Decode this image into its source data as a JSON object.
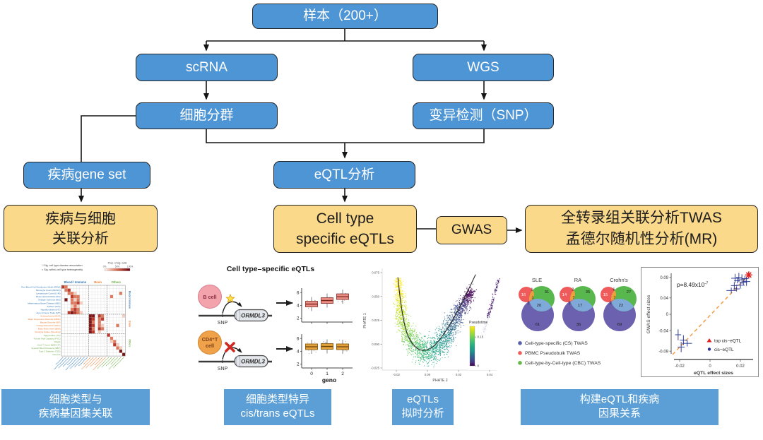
{
  "flowchart": {
    "nodes": {
      "sample": "样本（200+）",
      "scrna": "scRNA",
      "wgs": "WGS",
      "clustering": "细胞分群",
      "variant": "变异检测（SNP）",
      "gene_set": "疾病gene set",
      "eqtl": "eQTL分析",
      "disease_cell": "疾病与细胞\n关联分析",
      "cell_type_eqtls": "Cell type\nspecific eQTLs",
      "gwas": "GWAS",
      "twas_mr": "全转录组关联分析TWAS\n孟德尔随机性分析(MR)"
    },
    "colors": {
      "process_blue": "#4E95D5",
      "result_orange": "#FBD98B",
      "caption_blue": "#5B9FD6",
      "border": "#242424",
      "connector": "#151515"
    }
  },
  "captions": [
    {
      "line1": "细胞类型与",
      "line2": "疾病基因集关联"
    },
    {
      "line1": "细胞类型特异",
      "line2": "cis/trans eQTLs"
    },
    {
      "line1": "eQTLs",
      "line2": "拟时分析"
    },
    {
      "line1": "构建eQTL和疾病",
      "line2": "因果关系"
    }
  ],
  "chart_data": [
    {
      "type": "heatmap",
      "legend": [
        "□ Sig. cell type-disease association",
        "× Sig. within-cell type heterogeneity"
      ],
      "colorbar": {
        "label": "Prop. of sig. cells",
        "ticks": [
          "0%",
          "50%",
          "100%"
        ]
      },
      "col_groups": [
        {
          "label": "Blood / Immune",
          "color": "#2E75B6",
          "cols": 9
        },
        {
          "label": "Brain",
          "color": "#ED7D31",
          "cols": 6
        },
        {
          "label": "Others",
          "color": "#70AD47",
          "cols": 6
        }
      ],
      "rows": [
        {
          "label": "Red Blood Cell Distribution Width (RDW)",
          "g": 0
        },
        {
          "label": "Monocyte Count (MONO)",
          "g": 0
        },
        {
          "label": "Lymphocyte Count (LYM)",
          "g": 0
        },
        {
          "label": "Rheumatoid Arthritis (RA)",
          "g": 0
        },
        {
          "label": "Multiple Sclerosis (MS)",
          "g": 0
        },
        {
          "label": "Inflammatory Bowel Disease (IBD)",
          "g": 0
        },
        {
          "label": "Asthma (asth)",
          "g": 0
        },
        {
          "label": "Hypothyroidism (HT)",
          "g": 0
        },
        {
          "label": "Auto Immune Traits (AIT)",
          "g": 0
        },
        {
          "label": "Schizophrenia (SCZ)",
          "g": 1
        },
        {
          "label": "Major Depressive Disorder (MDD)",
          "g": 1
        },
        {
          "label": "Bipolar Disorder (BP)",
          "g": 1
        },
        {
          "label": "College Education (EDU)",
          "g": 1
        },
        {
          "label": "Body Mass Index (BMI)",
          "g": 1
        },
        {
          "label": "Smoking Status (Smoking)",
          "g": 1
        },
        {
          "label": "Triglycerides (TG)",
          "g": 2
        },
        {
          "label": "Forced Vital Capacity (FVC)",
          "g": 2
        },
        {
          "label": "Height",
          "g": 2
        },
        {
          "label": "Heel T Score (BMD-HT)",
          "g": 2
        },
        {
          "label": "Systolic Blood Pressure (SBP)",
          "g": 2
        },
        {
          "label": "Type 2 Diabetes (T2D)",
          "g": 2
        },
        {
          "label": "Glucose",
          "g": 2
        }
      ],
      "palette": [
        "#f6cfc0",
        "#df7a5e",
        "#bb3a2c",
        "#7e1416"
      ],
      "cells": [
        [
          0,
          0,
          3
        ],
        [
          0,
          1,
          2
        ],
        [
          1,
          1,
          2
        ],
        [
          1,
          2,
          3
        ],
        [
          2,
          2,
          2
        ],
        [
          2,
          3,
          2
        ],
        [
          2,
          4,
          1
        ],
        [
          2,
          19,
          2
        ],
        [
          3,
          3,
          3
        ],
        [
          3,
          4,
          2
        ],
        [
          3,
          5,
          2
        ],
        [
          3,
          16,
          2
        ],
        [
          4,
          1,
          4
        ],
        [
          4,
          3,
          2
        ],
        [
          4,
          4,
          1
        ],
        [
          4,
          5,
          2
        ],
        [
          5,
          3,
          2
        ],
        [
          5,
          4,
          2
        ],
        [
          5,
          5,
          3
        ],
        [
          5,
          6,
          1
        ],
        [
          6,
          3,
          1
        ],
        [
          6,
          4,
          2
        ],
        [
          6,
          5,
          1
        ],
        [
          7,
          3,
          2
        ],
        [
          7,
          4,
          3
        ],
        [
          7,
          5,
          2
        ],
        [
          8,
          2,
          3
        ],
        [
          8,
          3,
          4
        ],
        [
          8,
          4,
          3
        ],
        [
          8,
          5,
          2
        ],
        [
          8,
          6,
          1
        ],
        [
          9,
          9,
          4
        ],
        [
          9,
          10,
          4
        ],
        [
          9,
          12,
          3
        ],
        [
          9,
          13,
          2
        ],
        [
          9,
          20,
          1
        ],
        [
          10,
          9,
          4
        ],
        [
          10,
          10,
          3
        ],
        [
          10,
          12,
          2
        ],
        [
          10,
          13,
          3
        ],
        [
          11,
          9,
          4
        ],
        [
          11,
          10,
          2
        ],
        [
          11,
          12,
          2
        ],
        [
          12,
          9,
          4
        ],
        [
          12,
          10,
          3
        ],
        [
          12,
          12,
          2
        ],
        [
          12,
          13,
          1
        ],
        [
          12,
          18,
          2
        ],
        [
          13,
          9,
          4
        ],
        [
          13,
          10,
          2
        ],
        [
          13,
          12,
          3
        ],
        [
          13,
          13,
          2
        ],
        [
          14,
          9,
          4
        ],
        [
          14,
          10,
          3
        ],
        [
          14,
          12,
          1
        ],
        [
          15,
          15,
          3
        ],
        [
          16,
          16,
          2
        ],
        [
          17,
          16,
          1
        ],
        [
          17,
          17,
          2
        ],
        [
          18,
          17,
          3
        ],
        [
          18,
          18,
          1
        ],
        [
          19,
          18,
          2
        ],
        [
          19,
          19,
          1
        ],
        [
          20,
          19,
          4
        ],
        [
          21,
          20,
          4
        ]
      ]
    },
    {
      "type": "schematic_boxplot",
      "title": "Cell type–specific eQTLs",
      "rows": [
        {
          "cell": "B cell",
          "snp": "SNP",
          "gene": "ORMDL3",
          "effect": "active",
          "box_values": [
            4.2,
            4.75,
            5.35
          ]
        },
        {
          "cell": "CD4⁺T\ncell",
          "snp": "SNP",
          "gene": "ORMDL3",
          "effect": "blocked",
          "box_values": [
            4.7,
            4.75,
            4.7
          ]
        }
      ],
      "yticks": [
        2,
        4,
        6
      ],
      "xticks": [
        "0",
        "1",
        "2"
      ],
      "xlabel": "geno"
    },
    {
      "type": "scatter",
      "xlabel": "PHATE 2",
      "ylabel": "PHATE 1",
      "xticks": [
        "-0.02",
        "0.00",
        "0.02",
        "0.04"
      ],
      "yticks": [
        "0.075",
        "0.050",
        "0.025",
        "0.000",
        "-0.025"
      ],
      "colorbar": {
        "label": "Pseudotime",
        "ticks": [
          {
            "label": "0.15",
            "frac": 0.27
          },
          {
            "label": "0",
            "frac": 1.0
          }
        ]
      },
      "palette": [
        "#fde725",
        "#d0e11c",
        "#a0da39",
        "#73d056",
        "#4ac16d",
        "#2db27d",
        "#1fa187",
        "#21918c",
        "#2e6e8e",
        "#39568c",
        "#453781",
        "#440154"
      ],
      "trajectory": [
        [
          -0.019,
          0.068
        ],
        [
          -0.017,
          0.028
        ],
        [
          -0.009,
          -0.003
        ],
        [
          0.003,
          -0.009
        ],
        [
          0.013,
          0.01
        ],
        [
          0.021,
          0.036
        ],
        [
          0.029,
          0.056
        ]
      ],
      "spread": [
        0.0035,
        0.006,
        0.0085,
        0.009,
        0.008,
        0.006,
        0.004
      ],
      "curve": [
        [
          -0.019,
          0.07
        ],
        [
          -0.016,
          0.02
        ],
        [
          -0.008,
          -0.006
        ],
        [
          0.002,
          -0.007
        ],
        [
          0.012,
          0.013
        ],
        [
          0.022,
          0.042
        ],
        [
          0.031,
          0.073
        ]
      ],
      "n_points": 2600
    },
    {
      "type": "venn",
      "sets": [
        "SLE",
        "RA",
        "Crohn's"
      ],
      "counts": {
        "SLE": {
          "pbmc": 16,
          "pbmc_cbc": 1,
          "center": 3,
          "pbmc_cs": 1,
          "cbc": 31,
          "cbc_cs": 20,
          "cs": 61
        },
        "RA": {
          "pbmc": 14,
          "pbmc_cbc": 2,
          "center": 7,
          "pbmc_cs": 1,
          "cbc": 35,
          "cbc_cs": 17,
          "cs": 36
        },
        "Crohn's": {
          "pbmc": 15,
          "pbmc_cbc": 6,
          "center": 7,
          "pbmc_cs": 1,
          "cbc": 27,
          "cbc_cs": 22,
          "cs": 69
        }
      },
      "legend": [
        {
          "label": "Cell-type-specific (CS) TWAS",
          "color": "#5B63AE"
        },
        {
          "label": "PBMC Pseudobulk TWAS",
          "color": "#F15E5E"
        },
        {
          "label": "Cell-type-by-Cell-type (CBC) TWAS",
          "color": "#62BB46"
        }
      ],
      "circle_colors": {
        "cbc": "#58B84D",
        "pbmc": "#EF5A5A",
        "cs": "#6C61AE",
        "cbc_cs": "#7FA9D8",
        "pbmc_cbc": "#E9A23B",
        "pbmc_cs": "#C25E88",
        "center": "#D85A6A"
      }
    },
    {
      "type": "scatter",
      "annotation": {
        "base": "p=8.49x10",
        "exp": "-7"
      },
      "xlabel": "eQTL effect sizes",
      "ylabel": "GWAS effect sizes",
      "xticks": [
        "-0.02",
        "0",
        "0.02"
      ],
      "yticks": [
        "0.09",
        "0.04",
        "0",
        "-0.04",
        "-0.09"
      ],
      "line_color": "#F2A24E",
      "points": [
        [
          -0.021,
          -0.05
        ],
        [
          -0.0175,
          -0.063
        ],
        [
          -0.019,
          -0.08
        ],
        [
          -0.015,
          -0.071
        ],
        [
          0.014,
          0.058
        ],
        [
          0.016,
          0.07
        ],
        [
          0.0175,
          0.062
        ],
        [
          0.018,
          0.082
        ],
        [
          0.02,
          0.071
        ],
        [
          0.021,
          0.086
        ],
        [
          0.022,
          0.078
        ],
        [
          0.019,
          0.09
        ],
        [
          0.023,
          0.087
        ],
        [
          0.0165,
          0.088
        ],
        [
          0.024,
          0.08
        ]
      ],
      "top_point": [
        0.0255,
        0.096
      ],
      "legend": [
        {
          "marker": "triangle",
          "color": "#E01E1E",
          "label": "top cis−eQTL"
        },
        {
          "marker": "dot",
          "color": "#283593",
          "label": "cis−eQTL"
        }
      ]
    }
  ]
}
